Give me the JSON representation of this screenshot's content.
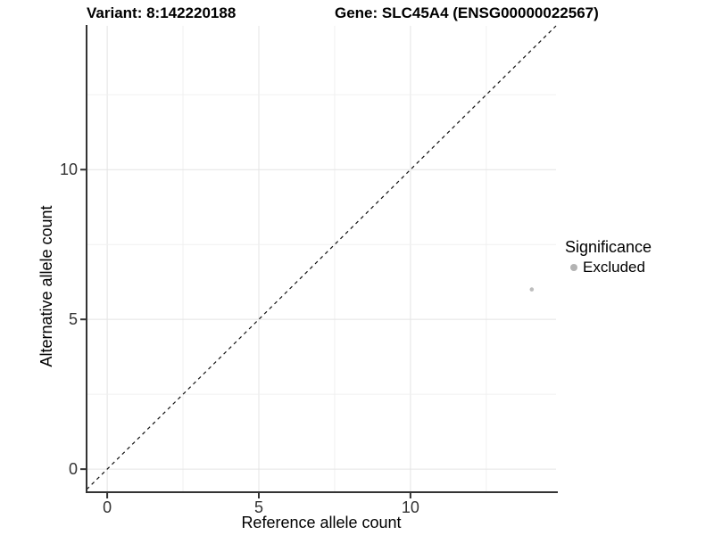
{
  "header": {
    "variant_title": "Variant: 8:142220188",
    "gene_title": "Gene: SLC45A4 (ENSG00000022567)"
  },
  "chart_data": {
    "type": "scatter",
    "title": "Variant: 8:142220188  /  Gene: SLC45A4 (ENSG00000022567)",
    "xlabel": "Reference allele count",
    "ylabel": "Alternative allele count",
    "x_ticks": [
      0,
      5,
      10
    ],
    "y_ticks": [
      0,
      5,
      10
    ],
    "xlim": [
      -0.68,
      14.8
    ],
    "ylim": [
      -0.77,
      14.8
    ],
    "grid": "on",
    "grid_step": 2.5,
    "series": [
      {
        "name": "Excluded",
        "color": "#bdbdbd",
        "points": [
          {
            "x": 14,
            "y": 6
          }
        ]
      }
    ],
    "reference_line": {
      "type": "identity",
      "slope": 1,
      "intercept": 0,
      "linetype": "dashed",
      "color": "#111111"
    },
    "legend": {
      "title": "Significance",
      "position": "right",
      "items": [
        {
          "label": "Excluded",
          "color": "#b3b3b3"
        }
      ]
    },
    "colors": {
      "grid_major": "#e4e4e4",
      "grid_minor": "#f0f0f0",
      "axis": "#333333",
      "tick_text": "#333333",
      "background": "#ffffff"
    }
  }
}
